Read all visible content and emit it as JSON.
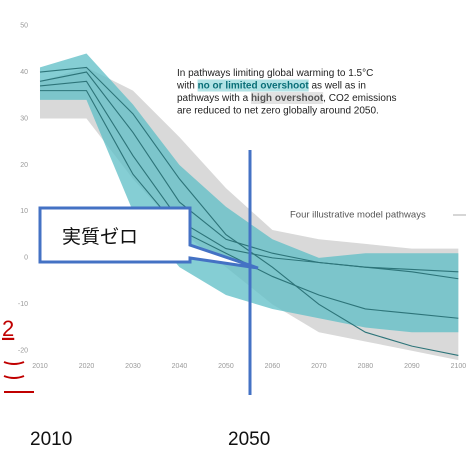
{
  "chart_data": {
    "type": "line",
    "x": [
      2010,
      2020,
      2030,
      2040,
      2050,
      2060,
      2070,
      2080,
      2090,
      2100
    ],
    "xlim": [
      2008,
      2101
    ],
    "ylim": [
      -25,
      54
    ],
    "xticks": [
      2010,
      2020,
      2030,
      2040,
      2050,
      2060,
      2070,
      2080,
      2090,
      2100
    ],
    "yticks": [
      -20,
      -10,
      0,
      10,
      20,
      30,
      40,
      50
    ],
    "bands": [
      {
        "color": "#d9d9d9",
        "upper": [
          38,
          41,
          36,
          26,
          15,
          6,
          4,
          3,
          2,
          2
        ],
        "lower": [
          30,
          30,
          17,
          6,
          -2,
          -10,
          -16,
          -18,
          -20,
          -22
        ]
      },
      {
        "color": "#5cbdc5",
        "upper": [
          41,
          44,
          33,
          20,
          11,
          4,
          0,
          1,
          1,
          1
        ],
        "lower": [
          34,
          34,
          10,
          -2,
          -8,
          -11,
          -13,
          -15,
          -16,
          -16
        ]
      }
    ],
    "series": [
      {
        "color": "#2d7479",
        "values": [
          37,
          38,
          22,
          8,
          2,
          0,
          -1,
          -2,
          -2.5,
          -3
        ]
      },
      {
        "color": "#2d7479",
        "values": [
          38,
          40,
          27,
          12,
          4,
          1,
          -1,
          -2,
          -3,
          -4.5
        ]
      },
      {
        "color": "#2d7479",
        "values": [
          36,
          36,
          18,
          6,
          1,
          -4,
          -8,
          -11,
          -12,
          -13
        ]
      },
      {
        "color": "#2d7479",
        "values": [
          40,
          41,
          31,
          17,
          5,
          -2,
          -10,
          -16,
          -19,
          -21
        ]
      }
    ],
    "annotation": [
      [
        "In pathways limiting global warming to 1.5°C"
      ],
      [
        "with ",
        "no or limited overshoot",
        " as well as in"
      ],
      [
        "pathways with a ",
        "high overshoot",
        ", CO2 emissions"
      ],
      [
        "are reduced to net zero globally around 2050."
      ]
    ],
    "pathways_label": "Four illustrative model pathways",
    "callout": "実質ゼロ",
    "marker": "2",
    "bottom_labels": [
      "2010",
      "2050"
    ]
  }
}
